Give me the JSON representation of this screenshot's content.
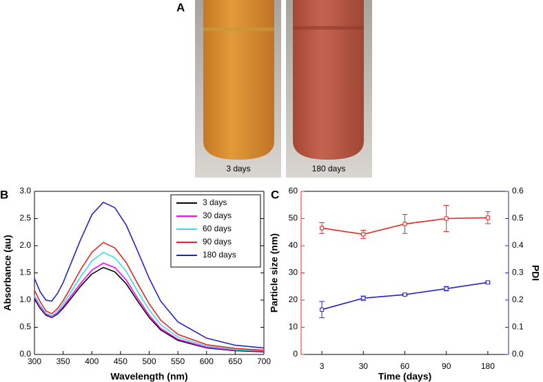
{
  "photos": {
    "label": "A",
    "captions": [
      "3 days",
      "180 days"
    ]
  },
  "chart_data": [
    {
      "type": "line",
      "panel_label": "B",
      "xlabel": "Wavelength (nm)",
      "ylabel": "Absorbance (au)",
      "x": [
        300,
        310,
        320,
        330,
        340,
        350,
        360,
        380,
        400,
        420,
        440,
        460,
        480,
        500,
        520,
        550,
        600,
        650,
        700
      ],
      "xlim": [
        300,
        700
      ],
      "xticks": [
        300,
        350,
        400,
        450,
        500,
        550,
        600,
        650,
        700
      ],
      "ylim": [
        0,
        3
      ],
      "yticks": [
        {
          "value": 0,
          "label": "0.0"
        },
        {
          "value": 0.5,
          "label": "0.5"
        },
        {
          "value": 1,
          "label": "1.0"
        },
        {
          "value": 1.5,
          "label": "1.5"
        },
        {
          "value": 2,
          "label": "2.0"
        },
        {
          "value": 2.5,
          "label": "2.5"
        },
        {
          "value": 3,
          "label": "3.0"
        }
      ],
      "legend": "upper right",
      "series": [
        {
          "name": "3 days",
          "color": "#000000",
          "values": [
            1.02,
            0.85,
            0.72,
            0.68,
            0.74,
            0.85,
            0.98,
            1.25,
            1.48,
            1.6,
            1.52,
            1.3,
            0.98,
            0.68,
            0.45,
            0.26,
            0.12,
            0.07,
            0.05
          ]
        },
        {
          "name": "30 days",
          "color": "#ff00ff",
          "values": [
            1.05,
            0.87,
            0.74,
            0.69,
            0.76,
            0.88,
            1.02,
            1.3,
            1.55,
            1.68,
            1.6,
            1.37,
            1.03,
            0.72,
            0.48,
            0.28,
            0.13,
            0.08,
            0.06
          ]
        },
        {
          "name": "60 days",
          "color": "#33e0e0",
          "values": [
            1.08,
            0.9,
            0.76,
            0.71,
            0.79,
            0.93,
            1.09,
            1.42,
            1.72,
            1.88,
            1.78,
            1.53,
            1.16,
            0.82,
            0.55,
            0.32,
            0.15,
            0.09,
            0.07
          ]
        },
        {
          "name": "90 days",
          "color": "#e8231f",
          "values": [
            1.18,
            0.97,
            0.8,
            0.75,
            0.84,
            0.99,
            1.17,
            1.55,
            1.88,
            2.06,
            1.96,
            1.69,
            1.3,
            0.93,
            0.63,
            0.37,
            0.18,
            0.11,
            0.08
          ]
        },
        {
          "name": "180 days",
          "color": "#2222cc",
          "values": [
            1.4,
            1.15,
            1.0,
            0.98,
            1.12,
            1.32,
            1.58,
            2.1,
            2.57,
            2.8,
            2.7,
            2.38,
            1.9,
            1.4,
            0.98,
            0.6,
            0.3,
            0.17,
            0.12
          ]
        }
      ]
    },
    {
      "type": "line",
      "panel_label": "C",
      "xlabel": "Time (days)",
      "ylabel": "Particle size (nm)",
      "y2label": "PDI",
      "categories": [
        "3",
        "30",
        "60",
        "90",
        "180"
      ],
      "ylim": [
        0,
        60
      ],
      "yticks": [
        0,
        10,
        20,
        30,
        40,
        50,
        60
      ],
      "y2lim": [
        0,
        0.6
      ],
      "y2ticks": [
        {
          "value": 0,
          "label": "0.0"
        },
        {
          "value": 0.1,
          "label": "0.1"
        },
        {
          "value": 0.2,
          "label": "0.2"
        },
        {
          "value": 0.3,
          "label": "0.3"
        },
        {
          "value": 0.4,
          "label": "0.4"
        },
        {
          "value": 0.5,
          "label": "0.5"
        },
        {
          "value": 0.6,
          "label": "0.6"
        }
      ],
      "color_axes": true,
      "series": [
        {
          "name": "Particle size",
          "color": "#e8231f",
          "values": [
            46.5,
            44.2,
            48,
            50,
            50.3
          ],
          "errors": [
            2,
            1.5,
            3.5,
            4.8,
            2.2
          ]
        },
        {
          "name": "PDI",
          "color": "#2222cc",
          "axis": "y2",
          "values": [
            0.165,
            0.207,
            0.22,
            0.242,
            0.265
          ],
          "errors": [
            0.03,
            0.008,
            0.003,
            0.008,
            0.004
          ]
        }
      ]
    }
  ]
}
